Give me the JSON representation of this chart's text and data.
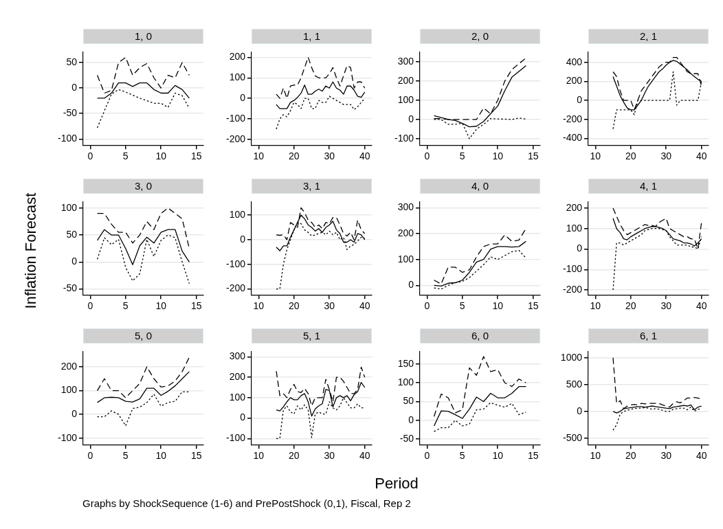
{
  "chart_data": [
    {
      "type": "line",
      "title": "1, 0",
      "grid": "y",
      "marker": "none",
      "x": [
        1,
        2,
        3,
        4,
        5,
        6,
        7,
        8,
        9,
        10,
        11,
        12,
        13,
        14
      ],
      "xlim": [
        -1,
        16
      ],
      "xticks": [
        0,
        5,
        10,
        15
      ],
      "ylim": [
        -112,
        71
      ],
      "yticks": [
        -100,
        -50,
        0,
        50
      ],
      "series": [
        {
          "color": "#000000",
          "line_style": "solid",
          "values": [
            -20,
            -20,
            -10,
            10,
            10,
            3,
            10,
            10,
            -3,
            -10,
            -10,
            5,
            -3,
            -20
          ]
        },
        {
          "color": "#000000",
          "line_style": "dashed",
          "values": [
            25,
            -10,
            -5,
            50,
            60,
            25,
            40,
            48,
            20,
            0,
            25,
            20,
            50,
            25
          ]
        },
        {
          "color": "#000000",
          "line_style": "dotted",
          "values": [
            -78,
            -45,
            -12,
            -3,
            -8,
            -14,
            -20,
            -25,
            -30,
            -30,
            -38,
            -10,
            -15,
            -40
          ]
        }
      ]
    },
    {
      "type": "line",
      "title": "1, 1",
      "grid": "y",
      "marker": "none",
      "x": [
        15,
        16,
        17,
        18,
        19,
        20,
        21,
        22,
        23,
        24,
        25,
        26,
        27,
        28,
        29,
        30,
        31,
        32,
        33,
        34,
        35,
        36,
        37,
        38,
        39,
        40
      ],
      "xlim": [
        8,
        42
      ],
      "xticks": [
        10,
        20,
        30,
        40
      ],
      "ylim": [
        -228,
        227
      ],
      "yticks": [
        -200,
        -100,
        0,
        100,
        200
      ],
      "series": [
        {
          "color": "#000000",
          "line_style": "solid",
          "values": [
            -30,
            -50,
            -50,
            -50,
            -20,
            -10,
            5,
            25,
            65,
            20,
            20,
            35,
            45,
            35,
            60,
            50,
            80,
            50,
            40,
            20,
            60,
            60,
            40,
            10,
            5,
            30
          ]
        },
        {
          "color": "#000000",
          "line_style": "dashed",
          "values": [
            20,
            0,
            50,
            0,
            60,
            65,
            65,
            100,
            150,
            200,
            150,
            110,
            100,
            100,
            100,
            120,
            150,
            100,
            60,
            110,
            160,
            150,
            50,
            80,
            80,
            50
          ]
        },
        {
          "color": "#000000",
          "line_style": "dotted",
          "values": [
            -150,
            -100,
            -80,
            -90,
            -60,
            -20,
            -30,
            -50,
            0,
            0,
            -50,
            -50,
            -10,
            -20,
            -20,
            10,
            0,
            -10,
            -20,
            -30,
            -30,
            -30,
            -55,
            -40,
            -20,
            0
          ]
        }
      ]
    },
    {
      "type": "line",
      "title": "2, 0",
      "grid": "y",
      "marker": "none",
      "x": [
        1,
        2,
        3,
        4,
        5,
        6,
        7,
        8,
        9,
        10,
        11,
        12,
        13,
        14
      ],
      "xlim": [
        -1,
        16
      ],
      "xticks": [
        0,
        5,
        10,
        15
      ],
      "ylim": [
        -133,
        352
      ],
      "yticks": [
        -100,
        0,
        100,
        200,
        300
      ],
      "series": [
        {
          "color": "#000000",
          "line_style": "solid",
          "values": [
            20,
            10,
            0,
            -5,
            -20,
            -38,
            -35,
            -10,
            30,
            70,
            150,
            220,
            250,
            280
          ]
        },
        {
          "color": "#000000",
          "line_style": "dashed",
          "values": [
            5,
            5,
            0,
            0,
            0,
            0,
            0,
            60,
            30,
            100,
            200,
            260,
            290,
            320
          ]
        },
        {
          "color": "#000000",
          "line_style": "dotted",
          "values": [
            0,
            0,
            -25,
            -25,
            -20,
            -100,
            -50,
            -25,
            5,
            3,
            2,
            0,
            8,
            2
          ]
        }
      ]
    },
    {
      "type": "line",
      "title": "2, 1",
      "grid": "y",
      "marker": "none",
      "x": [
        15,
        16,
        17,
        18,
        19,
        20,
        21,
        22,
        23,
        24,
        25,
        26,
        27,
        28,
        29,
        30,
        31,
        32,
        33,
        34,
        35,
        36,
        37,
        38,
        39,
        40
      ],
      "xlim": [
        8,
        42
      ],
      "xticks": [
        10,
        20,
        30,
        40
      ],
      "ylim": [
        -470,
        510
      ],
      "yticks": [
        -400,
        -200,
        0,
        200,
        400
      ],
      "series": [
        {
          "color": "#000000",
          "line_style": "solid",
          "values": [
            250,
            150,
            50,
            -20,
            -80,
            -100,
            -100,
            -50,
            0,
            80,
            150,
            200,
            250,
            300,
            330,
            370,
            400,
            420,
            410,
            380,
            350,
            320,
            280,
            250,
            220,
            200
          ]
        },
        {
          "color": "#000000",
          "line_style": "dashed",
          "values": [
            300,
            250,
            100,
            0,
            0,
            0,
            -100,
            0,
            100,
            150,
            200,
            250,
            300,
            350,
            380,
            400,
            400,
            450,
            450,
            400,
            350,
            300,
            280,
            280,
            280,
            150
          ]
        },
        {
          "color": "#000000",
          "line_style": "dotted",
          "values": [
            -300,
            -100,
            -100,
            -100,
            -100,
            -100,
            -150,
            0,
            0,
            0,
            0,
            0,
            0,
            0,
            0,
            0,
            0,
            300,
            -50,
            0,
            0,
            0,
            0,
            0,
            0,
            200
          ]
        }
      ]
    },
    {
      "type": "line",
      "title": "3, 0",
      "ylabel": "Inflation Forecast",
      "grid": "y",
      "marker": "none",
      "x": [
        1,
        2,
        3,
        4,
        5,
        6,
        7,
        8,
        9,
        10,
        11,
        12,
        13,
        14
      ],
      "xlim": [
        -1,
        16
      ],
      "xticks": [
        0,
        5,
        10,
        15
      ],
      "ylim": [
        -61,
        112
      ],
      "yticks": [
        -50,
        0,
        50,
        100
      ],
      "series": [
        {
          "color": "#000000",
          "line_style": "solid",
          "values": [
            40,
            60,
            50,
            50,
            25,
            -5,
            30,
            46,
            35,
            55,
            60,
            60,
            20,
            0
          ]
        },
        {
          "color": "#000000",
          "line_style": "dashed",
          "values": [
            90,
            90,
            70,
            55,
            55,
            35,
            50,
            75,
            60,
            90,
            100,
            90,
            80,
            25
          ]
        },
        {
          "color": "#000000",
          "line_style": "dotted",
          "values": [
            5,
            45,
            32,
            42,
            -10,
            -35,
            -22,
            42,
            10,
            40,
            50,
            45,
            0,
            -40
          ]
        }
      ]
    },
    {
      "type": "line",
      "title": "3, 1",
      "grid": "y",
      "marker": "none",
      "x": [
        15,
        16,
        17,
        18,
        19,
        20,
        21,
        22,
        23,
        24,
        25,
        26,
        27,
        28,
        29,
        30,
        31,
        32,
        33,
        34,
        35,
        36,
        37,
        38,
        39,
        40
      ],
      "xlim": [
        8,
        42
      ],
      "xticks": [
        10,
        20,
        30,
        40
      ],
      "ylim": [
        -224,
        155
      ],
      "yticks": [
        -200,
        -100,
        0,
        100
      ],
      "series": [
        {
          "color": "#000000",
          "line_style": "solid",
          "values": [
            -30,
            -45,
            -25,
            -25,
            10,
            40,
            70,
            100,
            85,
            60,
            50,
            35,
            45,
            30,
            50,
            60,
            75,
            40,
            25,
            -10,
            -10,
            0,
            -10,
            25,
            20,
            0
          ]
        },
        {
          "color": "#000000",
          "line_style": "dashed",
          "values": [
            20,
            18,
            20,
            0,
            70,
            60,
            50,
            130,
            110,
            80,
            70,
            50,
            60,
            45,
            70,
            65,
            90,
            90,
            60,
            25,
            15,
            30,
            0,
            80,
            40,
            25
          ]
        },
        {
          "color": "#000000",
          "line_style": "dotted",
          "values": [
            -200,
            -200,
            -100,
            -40,
            0,
            40,
            70,
            65,
            40,
            30,
            15,
            20,
            25,
            30,
            20,
            35,
            20,
            30,
            0,
            10,
            -40,
            -25,
            -20,
            -5,
            10,
            5
          ]
        }
      ]
    },
    {
      "type": "line",
      "title": "4, 0",
      "grid": "y",
      "marker": "none",
      "x": [
        1,
        2,
        3,
        4,
        5,
        6,
        7,
        8,
        9,
        10,
        11,
        12,
        13,
        14
      ],
      "xlim": [
        -1,
        16
      ],
      "xticks": [
        0,
        5,
        10,
        15
      ],
      "ylim": [
        -37,
        324
      ],
      "yticks": [
        0,
        100,
        200,
        300
      ],
      "series": [
        {
          "color": "#000000",
          "line_style": "solid",
          "values": [
            0,
            -3,
            8,
            10,
            20,
            50,
            90,
            100,
            140,
            150,
            150,
            148,
            150,
            170
          ]
        },
        {
          "color": "#000000",
          "line_style": "dashed",
          "values": [
            20,
            5,
            70,
            70,
            50,
            60,
            110,
            150,
            160,
            160,
            195,
            170,
            175,
            220
          ]
        },
        {
          "color": "#000000",
          "line_style": "dotted",
          "values": [
            -10,
            -15,
            0,
            10,
            15,
            30,
            55,
            80,
            110,
            100,
            115,
            130,
            135,
            105
          ]
        }
      ]
    },
    {
      "type": "line",
      "title": "4, 1",
      "grid": "y",
      "marker": "none",
      "x": [
        15,
        16,
        17,
        18,
        19,
        20,
        21,
        22,
        23,
        24,
        25,
        26,
        27,
        28,
        29,
        30,
        31,
        32,
        33,
        34,
        35,
        36,
        37,
        38,
        39,
        40
      ],
      "xlim": [
        8,
        42
      ],
      "xticks": [
        10,
        20,
        30,
        40
      ],
      "ylim": [
        -224,
        232
      ],
      "yticks": [
        -200,
        -100,
        0,
        100,
        200
      ],
      "series": [
        {
          "color": "#000000",
          "line_style": "solid",
          "values": [
            150,
            100,
            80,
            50,
            45,
            60,
            70,
            80,
            90,
            100,
            105,
            110,
            110,
            105,
            100,
            90,
            70,
            50,
            45,
            40,
            30,
            30,
            25,
            15,
            30,
            50
          ]
        },
        {
          "color": "#000000",
          "line_style": "dashed",
          "values": [
            200,
            160,
            120,
            90,
            70,
            80,
            90,
            100,
            110,
            120,
            115,
            115,
            110,
            130,
            140,
            150,
            100,
            90,
            80,
            70,
            60,
            60,
            50,
            50,
            0,
            130
          ]
        },
        {
          "color": "#000000",
          "line_style": "dotted",
          "values": [
            -200,
            30,
            30,
            20,
            30,
            40,
            50,
            60,
            70,
            90,
            95,
            100,
            100,
            100,
            95,
            90,
            60,
            40,
            20,
            20,
            20,
            20,
            10,
            10,
            0,
            60
          ]
        }
      ]
    },
    {
      "type": "line",
      "title": "5, 0",
      "annotations": [
        "Graphs by ShockSequence (1-6) and PrePostShock (0,1), Fiscal, Rep 2"
      ],
      "grid": "y",
      "marker": "none",
      "x": [
        1,
        2,
        3,
        4,
        5,
        6,
        7,
        8,
        9,
        10,
        11,
        12,
        13,
        14
      ],
      "xlim": [
        -1,
        16
      ],
      "xticks": [
        0,
        5,
        10,
        15
      ],
      "ylim": [
        -127,
        265
      ],
      "yticks": [
        -100,
        0,
        100,
        200
      ],
      "series": [
        {
          "color": "#000000",
          "line_style": "solid",
          "values": [
            50,
            70,
            72,
            70,
            55,
            52,
            65,
            110,
            110,
            80,
            97,
            120,
            150,
            180
          ]
        },
        {
          "color": "#000000",
          "line_style": "dashed",
          "values": [
            100,
            150,
            100,
            100,
            70,
            100,
            130,
            200,
            150,
            115,
            120,
            140,
            180,
            240
          ]
        },
        {
          "color": "#000000",
          "line_style": "dotted",
          "values": [
            -10,
            -10,
            15,
            0,
            -48,
            25,
            30,
            50,
            85,
            35,
            50,
            55,
            95,
            95
          ]
        }
      ]
    },
    {
      "type": "line",
      "title": "5, 1",
      "grid": "y",
      "marker": "none",
      "x": [
        15,
        16,
        17,
        18,
        19,
        20,
        21,
        22,
        23,
        24,
        25,
        26,
        27,
        28,
        29,
        30,
        31,
        32,
        33,
        34,
        35,
        36,
        37,
        38,
        39,
        40
      ],
      "xlim": [
        8,
        42
      ],
      "xticks": [
        10,
        20,
        30,
        40
      ],
      "ylim": [
        -130,
        327
      ],
      "yticks": [
        -100,
        0,
        100,
        200,
        300
      ],
      "series": [
        {
          "color": "#000000",
          "line_style": "solid",
          "values": [
            40,
            35,
            55,
            80,
            100,
            90,
            90,
            110,
            120,
            80,
            10,
            45,
            60,
            70,
            140,
            135,
            55,
            100,
            110,
            100,
            110,
            85,
            115,
            130,
            175,
            150
          ]
        },
        {
          "color": "#000000",
          "line_style": "dashed",
          "values": [
            230,
            110,
            120,
            100,
            140,
            165,
            130,
            125,
            145,
            120,
            60,
            100,
            100,
            100,
            190,
            140,
            80,
            200,
            200,
            180,
            150,
            120,
            120,
            140,
            250,
            200
          ]
        },
        {
          "color": "#000000",
          "line_style": "dotted",
          "values": [
            -100,
            -100,
            40,
            60,
            30,
            20,
            60,
            40,
            65,
            40,
            -95,
            20,
            30,
            20,
            20,
            80,
            50,
            40,
            60,
            100,
            75,
            50,
            50,
            70,
            50,
            50
          ]
        }
      ]
    },
    {
      "type": "line",
      "title": "6, 0",
      "xlabel": "Period",
      "grid": "y",
      "marker": "none",
      "x": [
        1,
        2,
        3,
        4,
        5,
        6,
        7,
        8,
        9,
        10,
        11,
        12,
        13,
        14
      ],
      "xlim": [
        -1,
        16
      ],
      "xticks": [
        0,
        5,
        10,
        15
      ],
      "ylim": [
        -65,
        184
      ],
      "yticks": [
        -50,
        0,
        50,
        100,
        150
      ],
      "series": [
        {
          "color": "#000000",
          "line_style": "solid",
          "values": [
            -15,
            25,
            24,
            15,
            5,
            30,
            62,
            50,
            72,
            60,
            60,
            72,
            90,
            90
          ]
        },
        {
          "color": "#000000",
          "line_style": "dashed",
          "values": [
            10,
            70,
            60,
            20,
            28,
            140,
            120,
            170,
            130,
            135,
            100,
            90,
            110,
            100
          ]
        },
        {
          "color": "#000000",
          "line_style": "dotted",
          "values": [
            -30,
            -20,
            -20,
            0,
            -15,
            -10,
            28,
            30,
            47,
            40,
            35,
            45,
            15,
            22
          ]
        }
      ]
    },
    {
      "type": "line",
      "title": "6, 1",
      "grid": "y",
      "marker": "none",
      "x": [
        15,
        16,
        17,
        18,
        19,
        20,
        21,
        22,
        23,
        24,
        25,
        26,
        27,
        28,
        29,
        30,
        31,
        32,
        33,
        34,
        35,
        36,
        37,
        38,
        39,
        40
      ],
      "xlim": [
        8,
        42
      ],
      "xticks": [
        10,
        20,
        30,
        40
      ],
      "ylim": [
        -620,
        1120
      ],
      "yticks": [
        -500,
        0,
        500,
        1000
      ],
      "series": [
        {
          "color": "#000000",
          "line_style": "solid",
          "values": [
            0,
            -30,
            0,
            50,
            60,
            70,
            80,
            90,
            90,
            80,
            90,
            100,
            90,
            80,
            70,
            60,
            50,
            80,
            90,
            100,
            110,
            100,
            120,
            30,
            80,
            100
          ]
        },
        {
          "color": "#000000",
          "line_style": "dashed",
          "values": [
            1000,
            150,
            200,
            50,
            100,
            120,
            130,
            120,
            150,
            140,
            150,
            150,
            150,
            150,
            120,
            100,
            80,
            150,
            180,
            160,
            200,
            250,
            250,
            260,
            250,
            230
          ]
        },
        {
          "color": "#000000",
          "line_style": "dotted",
          "values": [
            -350,
            -250,
            -50,
            0,
            20,
            40,
            50,
            60,
            60,
            70,
            60,
            40,
            50,
            40,
            20,
            0,
            0,
            40,
            50,
            60,
            60,
            30,
            80,
            0,
            40,
            50
          ]
        }
      ]
    }
  ]
}
